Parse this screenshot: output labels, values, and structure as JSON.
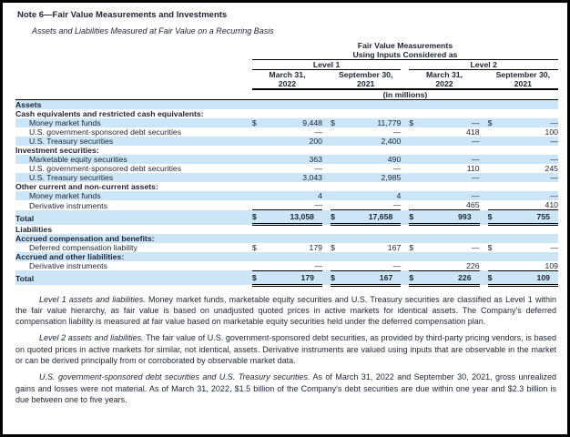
{
  "title": "Note 6—Fair Value Measurements and Investments",
  "subtitle": "Assets and Liabilities Measured at Fair Value on a Recurring Basis",
  "table": {
    "header": {
      "title_line1": "Fair Value Measurements",
      "title_line2": "Using Inputs Considered as",
      "level_groups": [
        "Level 1",
        "Level 2"
      ],
      "columns": [
        {
          "line1": "March 31,",
          "line2": "2022"
        },
        {
          "line1": "September 30,",
          "line2": "2021"
        },
        {
          "line1": "March 31,",
          "line2": "2022"
        },
        {
          "line1": "September 30,",
          "line2": "2021"
        }
      ],
      "units_note": "(in millions)"
    },
    "currency_symbol": "$",
    "rows": [
      {
        "label": "Assets",
        "style": "section",
        "shaded": true,
        "dollar": false,
        "values": null
      },
      {
        "label": "Cash equivalents and restricted cash equivalents:",
        "style": "subheader",
        "shaded": false,
        "dollar": false,
        "values": null
      },
      {
        "label": "Money market funds",
        "style": "item",
        "indent": true,
        "shaded": true,
        "dollar": true,
        "values": [
          "9,448",
          "11,779",
          "—",
          "—"
        ]
      },
      {
        "label": "U.S. government-sponsored debt securities",
        "style": "item",
        "indent": true,
        "shaded": false,
        "dollar": false,
        "values": [
          "—",
          "—",
          "418",
          "100"
        ]
      },
      {
        "label": "U.S. Treasury securities",
        "style": "item",
        "indent": true,
        "shaded": true,
        "dollar": false,
        "values": [
          "200",
          "2,400",
          "—",
          "—"
        ]
      },
      {
        "label": "Investment securities:",
        "style": "subheader",
        "shaded": false,
        "dollar": false,
        "values": null
      },
      {
        "label": "Marketable equity securities",
        "style": "item",
        "indent": true,
        "shaded": true,
        "dollar": false,
        "values": [
          "363",
          "490",
          "—",
          "—"
        ]
      },
      {
        "label": "U.S. government-sponsored debt securities",
        "style": "item",
        "indent": true,
        "shaded": false,
        "dollar": false,
        "values": [
          "—",
          "—",
          "110",
          "245"
        ]
      },
      {
        "label": "U.S. Treasury securities",
        "style": "item",
        "indent": true,
        "shaded": true,
        "dollar": false,
        "values": [
          "3,043",
          "2,985",
          "—",
          "—"
        ]
      },
      {
        "label": "Other current and non-current assets:",
        "style": "subheader",
        "shaded": false,
        "dollar": false,
        "values": null
      },
      {
        "label": "Money market funds",
        "style": "item",
        "indent": true,
        "shaded": true,
        "dollar": false,
        "values": [
          "4",
          "4",
          "—",
          "—"
        ]
      },
      {
        "label": "Derivative instruments",
        "style": "item",
        "indent": true,
        "shaded": false,
        "dollar": false,
        "values": [
          "—",
          "—",
          "465",
          "410"
        ]
      },
      {
        "label": "Total",
        "style": "total",
        "shaded": true,
        "dollar": true,
        "values": [
          "13,058",
          "17,658",
          "993",
          "755"
        ]
      },
      {
        "label": "Liabilities",
        "style": "section",
        "shaded": false,
        "dollar": false,
        "values": null
      },
      {
        "label": "Accrued compensation and benefits:",
        "style": "subheader",
        "shaded": true,
        "dollar": false,
        "values": null
      },
      {
        "label": "Deferred compensation liability",
        "style": "item",
        "indent": true,
        "shaded": false,
        "dollar": true,
        "values": [
          "179",
          "167",
          "—",
          "—"
        ]
      },
      {
        "label": "Accrued and other liabilities:",
        "style": "subheader",
        "shaded": true,
        "dollar": false,
        "values": null
      },
      {
        "label": "Derivative instruments",
        "style": "item",
        "indent": true,
        "shaded": false,
        "dollar": false,
        "values": [
          "—",
          "—",
          "226",
          "109"
        ]
      },
      {
        "label": "Total",
        "style": "total",
        "shaded": true,
        "dollar": true,
        "values": [
          "179",
          "167",
          "226",
          "109"
        ]
      }
    ]
  },
  "paragraphs": [
    {
      "lead": "Level 1 assets and liabilities.",
      "text": " Money market funds, marketable equity securities and U.S. Treasury securities are classified as Level 1 within the fair value hierarchy, as fair value is based on unadjusted quoted prices in active markets for identical assets. The Company's deferred compensation liability is measured at fair value based on marketable equity securities held under the deferred compensation plan."
    },
    {
      "lead": "Level 2 assets and liabilities.",
      "text": " The fair value of U.S. government-sponsored debt securities, as provided by third-party pricing vendors, is based on quoted prices in active markets for similar, not identical, assets. Derivative instruments are valued using inputs that are observable in the market or can be derived principally from or corroborated by observable market data."
    },
    {
      "lead": "U.S. government-sponsored debt securities and U.S. Treasury securities.",
      "text": " As of March 31, 2022 and September 30, 2021, gross unrealized gains and losses were not material. As of March 31, 2022, $1.5 billion of the Company's debt securities are due within one year and $2.3 billion is due between one to five years."
    }
  ]
}
